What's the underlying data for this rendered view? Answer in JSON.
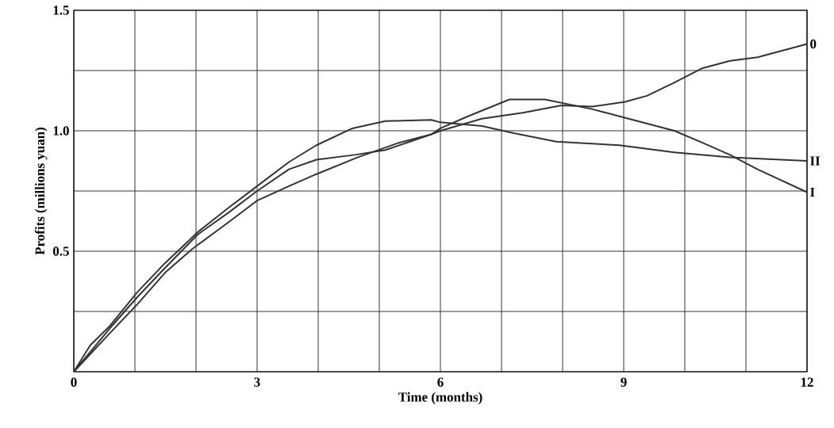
{
  "chart_data": {
    "type": "line",
    "xlabel": "Time (months)",
    "ylabel": "Profits (millions yuan)",
    "xlim": [
      0,
      12
    ],
    "ylim": [
      0,
      1.5
    ],
    "xticks": [
      {
        "value": 0,
        "label": "0"
      },
      {
        "value": 1,
        "label": null
      },
      {
        "value": 2,
        "label": null
      },
      {
        "value": 3,
        "label": "3"
      },
      {
        "value": 4,
        "label": null
      },
      {
        "value": 5,
        "label": null
      },
      {
        "value": 6,
        "label": "6"
      },
      {
        "value": 7,
        "label": null
      },
      {
        "value": 8,
        "label": null
      },
      {
        "value": 9,
        "label": "9"
      },
      {
        "value": 10,
        "label": null
      },
      {
        "value": 11,
        "label": null
      },
      {
        "value": 12,
        "label": "12"
      }
    ],
    "yticks": [
      {
        "value": 0,
        "label": null
      },
      {
        "value": 0.25,
        "label": null
      },
      {
        "value": 0.5,
        "label": "0.5"
      },
      {
        "value": 0.75,
        "label": null
      },
      {
        "value": 1.0,
        "label": "1.0"
      },
      {
        "value": 1.25,
        "label": null
      },
      {
        "value": 1.5,
        "label": "1.5"
      }
    ],
    "grid": true,
    "marker": "none",
    "line_style": "solid",
    "series": [
      {
        "name": "0",
        "color": "#333333",
        "x": [
          0,
          0.59,
          1.04,
          1.49,
          2.03,
          2.53,
          3,
          3.52,
          3.97,
          4.6,
          5.1,
          5.85,
          6,
          6.68,
          7.35,
          7.98,
          8.48,
          9.02,
          9.38,
          9.83,
          10.29,
          10.74,
          11.19,
          12
        ],
        "values": [
          0,
          0.18,
          0.31,
          0.43,
          0.57,
          0.66,
          0.75,
          0.84,
          0.88,
          0.9,
          0.92,
          0.985,
          1.0,
          1.05,
          1.075,
          1.105,
          1.1,
          1.12,
          1.145,
          1.2,
          1.26,
          1.29,
          1.305,
          1.36
        ]
      },
      {
        "name": "II",
        "color": "#333333",
        "x": [
          0,
          0.27,
          0.59,
          1.04,
          1.49,
          2.03,
          2.53,
          3,
          3.52,
          3.97,
          4.56,
          5.1,
          5.85,
          6,
          6.68,
          7.2,
          7.9,
          8.93,
          9.83,
          10.74,
          12
        ],
        "values": [
          0,
          0.11,
          0.19,
          0.33,
          0.45,
          0.58,
          0.68,
          0.77,
          0.87,
          0.94,
          1.01,
          1.04,
          1.045,
          1.035,
          1.02,
          0.99,
          0.955,
          0.94,
          0.91,
          0.89,
          0.875
        ]
      },
      {
        "name": "I",
        "color": "#333333",
        "x": [
          0,
          0.59,
          1.04,
          1.49,
          1.94,
          2.53,
          3,
          3.52,
          3.97,
          4.65,
          5.32,
          5.85,
          6,
          6.45,
          7.13,
          7.71,
          8.48,
          8.93,
          9.83,
          10.29,
          10.74,
          11.19,
          12
        ],
        "values": [
          0,
          0.16,
          0.28,
          0.41,
          0.51,
          0.62,
          0.71,
          0.77,
          0.82,
          0.89,
          0.95,
          0.985,
          1.01,
          1.06,
          1.13,
          1.13,
          1.09,
          1.06,
          1.0,
          0.95,
          0.9,
          0.84,
          0.745
        ]
      }
    ]
  }
}
